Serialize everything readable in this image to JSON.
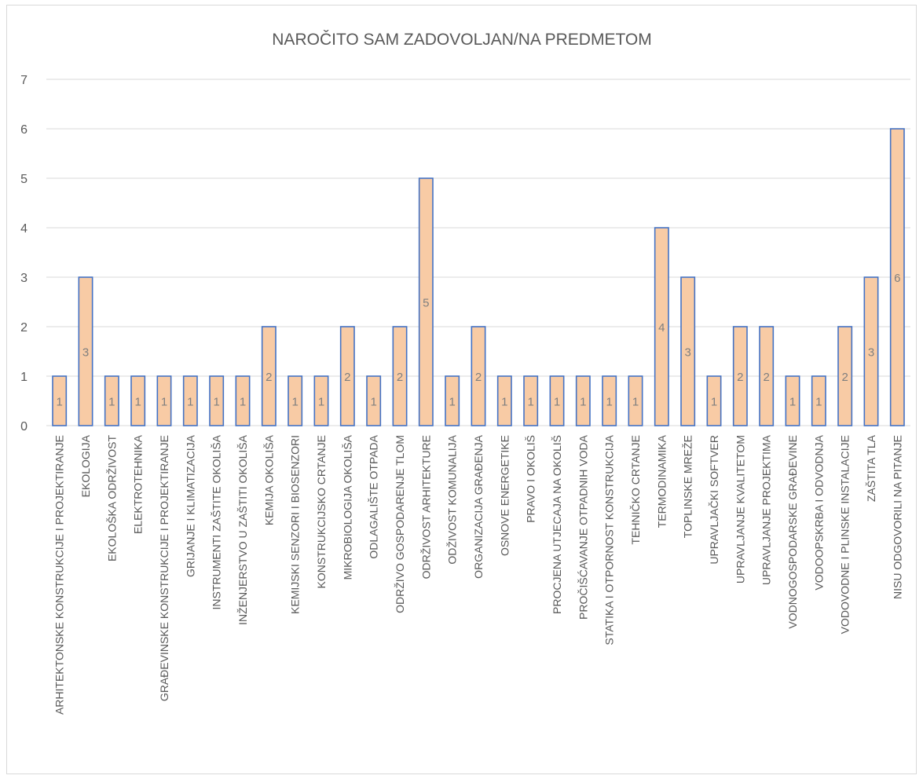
{
  "chart_data": {
    "type": "bar",
    "title": "NAROČITO SAM ZADOVOLJAN/NA PREDMETOM",
    "xlabel": "",
    "ylabel": "",
    "ylim": [
      0,
      7
    ],
    "yticks": [
      0,
      1,
      2,
      3,
      4,
      5,
      6,
      7
    ],
    "grid": true,
    "legend": "none",
    "colors": {
      "bar_fill": "#f8cba5",
      "bar_stroke": "#4472c4",
      "grid": "#d9d9d9",
      "text": "#595959"
    },
    "categories": [
      "ARHITEKTONSKE KONSTRUKCIJE I PROJEKTIRANJE",
      "EKOLOGIJA",
      "EKOLOŠKA ODRŽIVOST",
      "ELEKTROTEHNIKA",
      "GRAĐEVINSKE KONSTRUKCIJE I PROJEKTIRANJE",
      "GRIJANJE I KLIMATIZACIJA",
      "INSTRUMENTI ZAŠTITE OKOLIŠA",
      "INŽENJERSTVO U ZAŠTITI OKOLIŠA",
      "KEMIJA OKOLIŠA",
      "KEMIJSKI SENZORI I BIOSENZORI",
      "KONSTRUKCIJSKO CRTANJE",
      "MIKROBIOLOGIJA OKOLIŠA",
      "ODLAGALIŠTE OTPADA",
      "ODRŽIVO GOSPODARENJE TLOM",
      "ODRŽIVOST ARHITEKTURE",
      "ODŽIVOST KOMUNALIJA",
      "ORGANIZACIJA GRAĐENJA",
      "OSNOVE ENERGETIKE",
      "PRAVO I OKOLIŠ",
      "PROCJENA UTJECAJA NA OKOLIŠ",
      "PROČIŠĆAVANJE OTPADNIH VODA",
      "STATIKA I OTPORNOST KONSTRUKCIJA",
      "TEHNIČKO CRTANJE",
      "TERMODINAMIKA",
      "TOPLINSKE MREŽE",
      "UPRAVLJAČKI SOFTVER",
      "UPRAVLJANJE KVALITETOM",
      "UPRAVLJANJE PROJEKTIMA",
      "VODNOGOSPODARSKE GRAĐEVINE",
      "VODOOPSKRBA I ODVODNJA",
      "VODOVODNE I PLINSKE INSTALACIJE",
      "ZAŠTITA TLA",
      "NISU ODGOVORILI NA PITANJE"
    ],
    "values": [
      1,
      3,
      1,
      1,
      1,
      1,
      1,
      1,
      2,
      1,
      1,
      2,
      1,
      2,
      5,
      1,
      2,
      1,
      1,
      1,
      1,
      1,
      1,
      4,
      3,
      1,
      2,
      2,
      1,
      1,
      2,
      3,
      6
    ]
  }
}
